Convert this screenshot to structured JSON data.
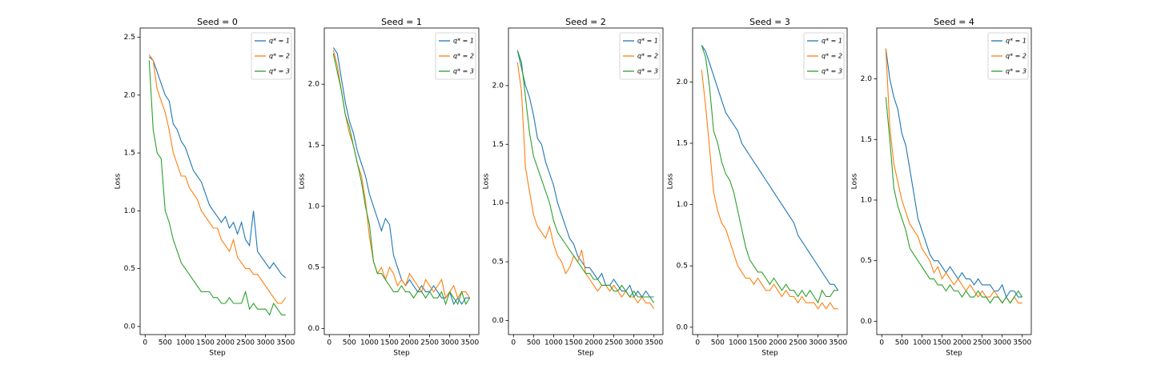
{
  "chart_data": [
    {
      "type": "line",
      "title": "Seed = 0",
      "xlabel": "Step",
      "ylabel": "Loss",
      "x": [
        100,
        200,
        300,
        400,
        500,
        600,
        700,
        800,
        900,
        1000,
        1100,
        1200,
        1300,
        1400,
        1500,
        1600,
        1700,
        1800,
        1900,
        2000,
        2100,
        2200,
        2300,
        2400,
        2500,
        2600,
        2700,
        2800,
        2900,
        3000,
        3100,
        3200,
        3300,
        3400,
        3500
      ],
      "xlim": [
        -125,
        3725
      ],
      "xticks": [
        0,
        500,
        1000,
        1500,
        2000,
        2500,
        3000,
        3500
      ],
      "ylim": [
        -0.07,
        2.58
      ],
      "yticks": [
        {
          "value": 0,
          "label": "0.0"
        },
        0.5,
        {
          "value": 1,
          "label": "1.0"
        },
        1.5,
        {
          "value": 2,
          "label": "2.0"
        },
        2.5
      ],
      "legend": "upper right",
      "series": [
        {
          "name": "q* = 1",
          "color": "#1f77b4",
          "values": [
            2.33,
            2.3,
            2.2,
            2.1,
            2.0,
            1.95,
            1.75,
            1.7,
            1.6,
            1.55,
            1.45,
            1.35,
            1.3,
            1.25,
            1.15,
            1.05,
            1.0,
            0.95,
            0.9,
            0.95,
            0.85,
            0.9,
            0.8,
            0.9,
            0.75,
            0.7,
            1.0,
            0.65,
            0.6,
            0.55,
            0.5,
            0.55,
            0.5,
            0.45,
            0.42
          ]
        },
        {
          "name": "q* = 2",
          "color": "#ff7f0e",
          "values": [
            2.35,
            2.3,
            2.05,
            1.95,
            1.85,
            1.7,
            1.5,
            1.4,
            1.3,
            1.3,
            1.2,
            1.15,
            1.1,
            1.0,
            0.95,
            0.9,
            0.85,
            0.85,
            0.75,
            0.7,
            0.65,
            0.75,
            0.6,
            0.55,
            0.5,
            0.5,
            0.45,
            0.45,
            0.4,
            0.35,
            0.3,
            0.25,
            0.2,
            0.2,
            0.25
          ]
        },
        {
          "name": "q* = 3",
          "color": "#2ca02c",
          "values": [
            2.3,
            1.7,
            1.5,
            1.45,
            1.0,
            0.9,
            0.75,
            0.65,
            0.55,
            0.5,
            0.45,
            0.4,
            0.35,
            0.3,
            0.3,
            0.3,
            0.25,
            0.25,
            0.2,
            0.2,
            0.25,
            0.2,
            0.2,
            0.2,
            0.3,
            0.15,
            0.2,
            0.15,
            0.15,
            0.15,
            0.1,
            0.2,
            0.15,
            0.1,
            0.1
          ]
        }
      ]
    },
    {
      "type": "line",
      "title": "Seed = 1",
      "xlabel": "Step",
      "ylabel": "Loss",
      "x": [
        100,
        200,
        300,
        400,
        500,
        600,
        700,
        800,
        900,
        1000,
        1100,
        1200,
        1300,
        1400,
        1500,
        1600,
        1700,
        1800,
        1900,
        2000,
        2100,
        2200,
        2300,
        2400,
        2500,
        2600,
        2700,
        2800,
        2900,
        3000,
        3100,
        3200,
        3300,
        3400,
        3500
      ],
      "xlim": [
        -125,
        3725
      ],
      "xticks": [
        0,
        500,
        1000,
        1500,
        2000,
        2500,
        3000,
        3500
      ],
      "ylim": [
        -0.05,
        2.46
      ],
      "yticks": [
        {
          "value": 0,
          "label": "0.0"
        },
        0.5,
        {
          "value": 1,
          "label": "1.0"
        },
        1.5,
        {
          "value": 2,
          "label": "2.0"
        }
      ],
      "legend": "upper right",
      "series": [
        {
          "name": "q* = 1",
          "color": "#1f77b4",
          "values": [
            2.3,
            2.25,
            2.05,
            1.85,
            1.7,
            1.6,
            1.45,
            1.35,
            1.25,
            1.1,
            1.0,
            0.9,
            0.8,
            0.9,
            0.85,
            0.6,
            0.5,
            0.4,
            0.35,
            0.4,
            0.35,
            0.3,
            0.35,
            0.3,
            0.3,
            0.35,
            0.3,
            0.25,
            0.25,
            0.3,
            0.2,
            0.25,
            0.2,
            0.25,
            0.25
          ]
        },
        {
          "name": "q* = 2",
          "color": "#ff7f0e",
          "values": [
            2.28,
            2.15,
            1.95,
            1.75,
            1.6,
            1.5,
            1.35,
            1.25,
            1.05,
            0.75,
            0.55,
            0.45,
            0.5,
            0.4,
            0.5,
            0.45,
            0.35,
            0.4,
            0.35,
            0.45,
            0.4,
            0.35,
            0.3,
            0.4,
            0.35,
            0.3,
            0.35,
            0.4,
            0.25,
            0.3,
            0.35,
            0.25,
            0.3,
            0.3,
            0.25
          ]
        },
        {
          "name": "q* = 3",
          "color": "#2ca02c",
          "values": [
            2.25,
            2.1,
            1.95,
            1.75,
            1.65,
            1.5,
            1.35,
            1.2,
            1.0,
            0.85,
            0.55,
            0.45,
            0.45,
            0.4,
            0.35,
            0.3,
            0.3,
            0.35,
            0.3,
            0.3,
            0.25,
            0.3,
            0.3,
            0.25,
            0.3,
            0.25,
            0.25,
            0.3,
            0.2,
            0.3,
            0.25,
            0.2,
            0.3,
            0.2,
            0.25
          ]
        }
      ]
    },
    {
      "type": "line",
      "title": "Seed = 2",
      "xlabel": "Step",
      "ylabel": "Loss",
      "x": [
        100,
        200,
        300,
        400,
        500,
        600,
        700,
        800,
        900,
        1000,
        1100,
        1200,
        1300,
        1400,
        1500,
        1600,
        1700,
        1800,
        1900,
        2000,
        2100,
        2200,
        2300,
        2400,
        2500,
        2600,
        2700,
        2800,
        2900,
        3000,
        3100,
        3200,
        3300,
        3400,
        3500
      ],
      "xlim": [
        -125,
        3725
      ],
      "xticks": [
        0,
        500,
        1000,
        1500,
        2000,
        2500,
        3000,
        3500
      ],
      "ylim": [
        -0.12,
        2.49
      ],
      "yticks": [
        {
          "value": 0,
          "label": "0.0"
        },
        0.5,
        {
          "value": 1,
          "label": "1.0"
        },
        1.5,
        {
          "value": 2,
          "label": "2.0"
        }
      ],
      "legend": "upper right",
      "series": [
        {
          "name": "q* = 1",
          "color": "#1f77b4",
          "values": [
            2.3,
            2.15,
            2.0,
            1.9,
            1.75,
            1.55,
            1.5,
            1.35,
            1.25,
            1.15,
            1.0,
            0.9,
            0.8,
            0.7,
            0.65,
            0.55,
            0.5,
            0.45,
            0.45,
            0.4,
            0.35,
            0.4,
            0.3,
            0.3,
            0.35,
            0.3,
            0.25,
            0.25,
            0.3,
            0.2,
            0.25,
            0.2,
            0.25,
            0.2,
            0.2
          ]
        },
        {
          "name": "q* = 2",
          "color": "#ff7f0e",
          "values": [
            2.2,
            1.95,
            1.3,
            1.1,
            0.9,
            0.8,
            0.75,
            0.7,
            0.8,
            0.65,
            0.55,
            0.5,
            0.4,
            0.45,
            0.55,
            0.5,
            0.6,
            0.4,
            0.35,
            0.3,
            0.25,
            0.3,
            0.3,
            0.25,
            0.3,
            0.25,
            0.2,
            0.25,
            0.2,
            0.2,
            0.15,
            0.2,
            0.15,
            0.15,
            0.1
          ]
        },
        {
          "name": "q* = 3",
          "color": "#2ca02c",
          "values": [
            2.3,
            2.2,
            1.9,
            1.6,
            1.4,
            1.3,
            1.2,
            1.1,
            1.0,
            0.85,
            0.75,
            0.7,
            0.65,
            0.6,
            0.55,
            0.5,
            0.45,
            0.4,
            0.4,
            0.35,
            0.35,
            0.3,
            0.3,
            0.3,
            0.25,
            0.25,
            0.3,
            0.25,
            0.2,
            0.25,
            0.2,
            0.2,
            0.2,
            0.2,
            0.15
          ]
        }
      ]
    },
    {
      "type": "line",
      "title": "Seed = 3",
      "xlabel": "Step",
      "ylabel": "Loss",
      "x": [
        100,
        200,
        300,
        400,
        500,
        600,
        700,
        800,
        900,
        1000,
        1100,
        1200,
        1300,
        1400,
        1500,
        1600,
        1700,
        1800,
        1900,
        2000,
        2100,
        2200,
        2300,
        2400,
        2500,
        2600,
        2700,
        2800,
        2900,
        3000,
        3100,
        3200,
        3300,
        3400,
        3500
      ],
      "xlim": [
        -125,
        3725
      ],
      "xticks": [
        0,
        500,
        1000,
        1500,
        2000,
        2500,
        3000,
        3500
      ],
      "ylim": [
        -0.06,
        2.44
      ],
      "yticks": [
        {
          "value": 0,
          "label": "0.0"
        },
        0.5,
        {
          "value": 1,
          "label": "1.0"
        },
        1.5,
        {
          "value": 2,
          "label": "2.0"
        }
      ],
      "legend": "upper right",
      "series": [
        {
          "name": "q* = 1",
          "color": "#1f77b4",
          "values": [
            2.3,
            2.25,
            2.15,
            2.05,
            1.95,
            1.85,
            1.75,
            1.7,
            1.65,
            1.6,
            1.5,
            1.45,
            1.4,
            1.35,
            1.3,
            1.25,
            1.2,
            1.15,
            1.1,
            1.05,
            1.0,
            0.95,
            0.9,
            0.85,
            0.75,
            0.7,
            0.65,
            0.6,
            0.55,
            0.5,
            0.45,
            0.4,
            0.35,
            0.35,
            0.3
          ]
        },
        {
          "name": "q* = 2",
          "color": "#ff7f0e",
          "values": [
            2.1,
            1.8,
            1.45,
            1.1,
            0.95,
            0.85,
            0.8,
            0.7,
            0.6,
            0.5,
            0.45,
            0.4,
            0.4,
            0.35,
            0.4,
            0.35,
            0.3,
            0.3,
            0.35,
            0.3,
            0.25,
            0.3,
            0.25,
            0.25,
            0.2,
            0.25,
            0.2,
            0.2,
            0.2,
            0.15,
            0.2,
            0.15,
            0.2,
            0.15,
            0.15
          ]
        },
        {
          "name": "q* = 3",
          "color": "#2ca02c",
          "values": [
            2.3,
            2.2,
            1.95,
            1.6,
            1.5,
            1.35,
            1.25,
            1.2,
            1.1,
            0.95,
            0.8,
            0.65,
            0.55,
            0.5,
            0.45,
            0.45,
            0.4,
            0.35,
            0.4,
            0.35,
            0.3,
            0.35,
            0.3,
            0.3,
            0.25,
            0.3,
            0.25,
            0.3,
            0.25,
            0.2,
            0.3,
            0.25,
            0.25,
            0.3,
            0.3
          ]
        }
      ]
    },
    {
      "type": "line",
      "title": "Seed = 4",
      "xlabel": "Step",
      "ylabel": "Loss",
      "x": [
        100,
        200,
        300,
        400,
        500,
        600,
        700,
        800,
        900,
        1000,
        1100,
        1200,
        1300,
        1400,
        1500,
        1600,
        1700,
        1800,
        1900,
        2000,
        2100,
        2200,
        2300,
        2400,
        2500,
        2600,
        2700,
        2800,
        2900,
        3000,
        3100,
        3200,
        3300,
        3400,
        3500
      ],
      "xlim": [
        -125,
        3725
      ],
      "xticks": [
        0,
        500,
        1000,
        1500,
        2000,
        2500,
        3000,
        3500
      ],
      "ylim": [
        -0.11,
        2.42
      ],
      "yticks": [
        {
          "value": 0,
          "label": "0.0"
        },
        0.5,
        {
          "value": 1,
          "label": "1.0"
        },
        1.5,
        {
          "value": 2,
          "label": "2.0"
        }
      ],
      "legend": "upper right",
      "series": [
        {
          "name": "q* = 1",
          "color": "#1f77b4",
          "values": [
            2.25,
            2.0,
            1.85,
            1.75,
            1.55,
            1.45,
            1.25,
            1.05,
            0.85,
            0.75,
            0.65,
            0.55,
            0.5,
            0.5,
            0.45,
            0.4,
            0.45,
            0.4,
            0.35,
            0.4,
            0.35,
            0.35,
            0.3,
            0.35,
            0.3,
            0.3,
            0.3,
            0.25,
            0.25,
            0.3,
            0.2,
            0.25,
            0.25,
            0.2,
            0.2
          ]
        },
        {
          "name": "q* = 2",
          "color": "#ff7f0e",
          "values": [
            2.25,
            1.6,
            1.3,
            1.15,
            1.0,
            0.9,
            0.8,
            0.75,
            0.7,
            0.6,
            0.55,
            0.5,
            0.4,
            0.45,
            0.35,
            0.4,
            0.35,
            0.3,
            0.35,
            0.3,
            0.25,
            0.3,
            0.25,
            0.2,
            0.25,
            0.2,
            0.2,
            0.25,
            0.2,
            0.15,
            0.2,
            0.15,
            0.2,
            0.15,
            0.15
          ]
        },
        {
          "name": "q* = 3",
          "color": "#2ca02c",
          "values": [
            1.85,
            1.5,
            1.1,
            0.95,
            0.85,
            0.75,
            0.6,
            0.55,
            0.5,
            0.45,
            0.4,
            0.35,
            0.35,
            0.3,
            0.3,
            0.25,
            0.3,
            0.25,
            0.25,
            0.2,
            0.25,
            0.2,
            0.2,
            0.25,
            0.2,
            0.2,
            0.15,
            0.2,
            0.2,
            0.15,
            0.2,
            0.15,
            0.2,
            0.25,
            0.2
          ]
        }
      ]
    }
  ]
}
